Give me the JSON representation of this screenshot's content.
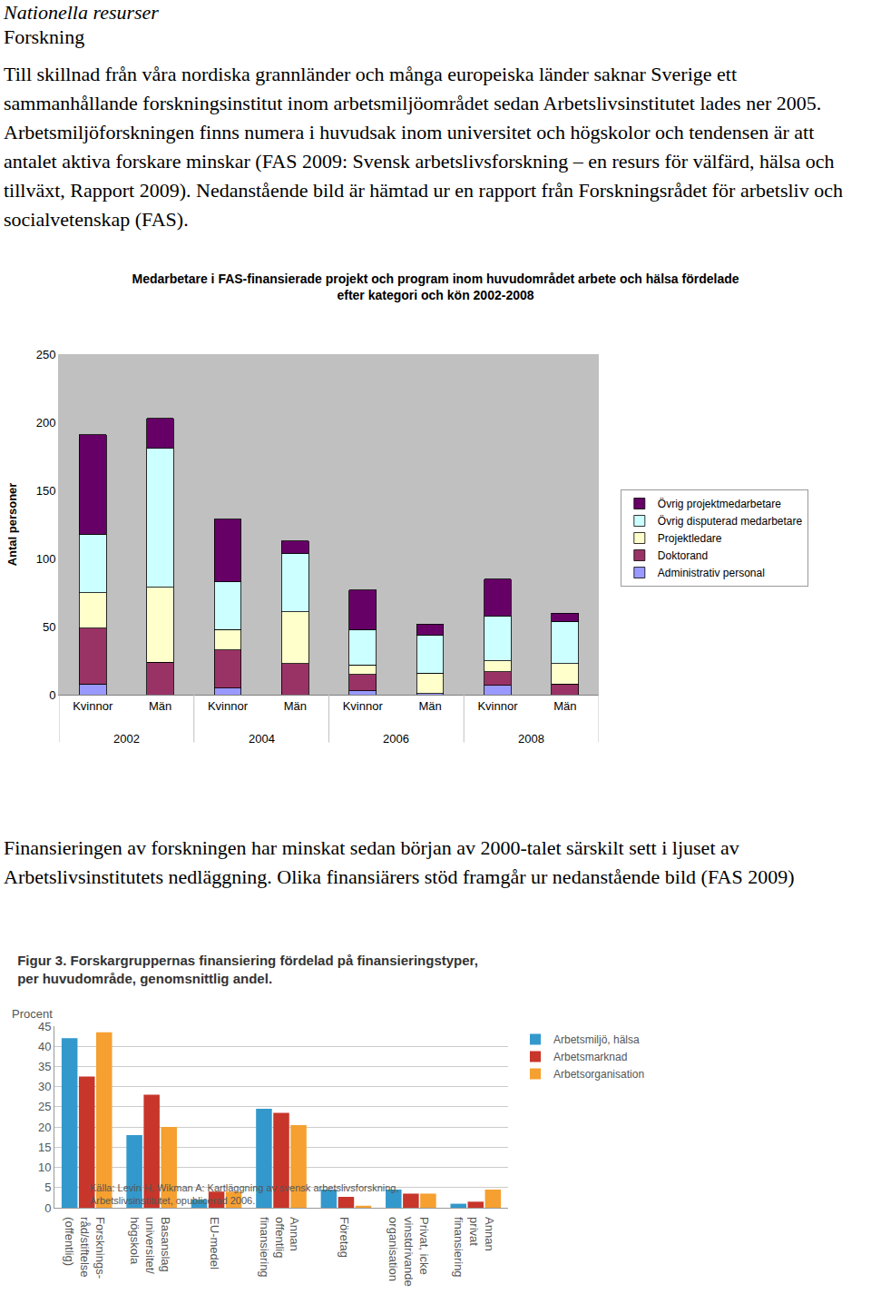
{
  "document": {
    "heading": "Nationella resurser",
    "subheading": "Forskning",
    "paragraphs": [
      "Till skillnad från våra nordiska grannländer och många europeiska länder saknar Sverige ett sammanhållande forskningsinstitut inom arbetsmiljöområdet sedan Arbetslivsinstitutet lades ner 2005. Arbetsmiljöforskningen finns numera i huvudsak inom universitet och högskolor och tendensen är att antalet aktiva forskare minskar (FAS 2009: Svensk arbetslivsforskning – en resurs för välfärd, hälsa och tillväxt, Rapport 2009). Nedanstående bild är hämtad ur en rapport från Forskningsrådet för arbetsliv och socialvetenskap (FAS).",
      "Finansieringen av forskningen har minskat sedan början av 2000-talet särskilt sett i ljuset av Arbetslivsinstitutets nedläggning. Olika finansiärers stöd framgår ur nedanstående bild (FAS 2009)"
    ]
  },
  "chart_data": [
    {
      "type": "bar",
      "stacked": true,
      "title": "Medarbetare i FAS-finansierade projekt och program inom huvudområdet arbete och hälsa fördelade\nefter kategori och kön 2002-2008",
      "y_label": "Antal personer",
      "categories": [
        "Kvinnor",
        "Män",
        "Kvinnor",
        "Män",
        "Kvinnor",
        "Män",
        "Kvinnor",
        "Män"
      ],
      "category_groups": [
        "2002",
        "2002",
        "2004",
        "2004",
        "2006",
        "2006",
        "2008",
        "2008"
      ],
      "series": [
        {
          "name": "Administrativ personal",
          "color": "#9999ff",
          "values": [
            8,
            0,
            5,
            0,
            3,
            1,
            7,
            0
          ]
        },
        {
          "name": "Doktorand",
          "color": "#993366",
          "values": [
            41,
            24,
            28,
            23,
            12,
            0,
            10,
            8
          ]
        },
        {
          "name": "Projektledare",
          "color": "#ffffcc",
          "values": [
            26,
            55,
            15,
            38,
            7,
            15,
            8,
            15
          ]
        },
        {
          "name": "Övrig disputerad medarbetare",
          "color": "#ccffff",
          "values": [
            43,
            102,
            35,
            43,
            26,
            28,
            33,
            31
          ]
        },
        {
          "name": "Övrig projektmedarbetare",
          "color": "#660066",
          "values": [
            73,
            22,
            46,
            9,
            29,
            8,
            27,
            6
          ]
        }
      ],
      "ylim": [
        0,
        250
      ],
      "yticks": [
        0,
        50,
        100,
        150,
        200,
        250
      ],
      "grid": false,
      "legend": "right"
    },
    {
      "type": "bar",
      "stacked": false,
      "title": "Figur 3. Forskargruppernas finansiering fördelad på finansieringstyper,\nper huvudområde, genomsnittlig andel.",
      "y_label": "Procent",
      "source": "Källa: Levin H, Wikman A: Kartläggning av svensk arbetslivsforskning,\nArbetslivsinstitutet, opublicerad 2006.",
      "categories": [
        "Forsknings-\nråd/stiftelse\n(offentlig)",
        "Basanslag\nuniversitet/\nhögskola",
        "EU-medel",
        "Annan\noffentlig\nfinansiering",
        "Företag",
        "Privat, icke\nvinstdrivande\norganisation",
        "Annan\nprivat\nfinansiering"
      ],
      "series": [
        {
          "name": "Arbetsmiljö, hälsa",
          "color": "#3399cc",
          "values": [
            42,
            18,
            2,
            24.5,
            4.5,
            4.5,
            1
          ]
        },
        {
          "name": "Arbetsmarknad",
          "color": "#c8352a",
          "values": [
            32.5,
            28,
            4,
            23.5,
            2.7,
            3.5,
            1.5
          ]
        },
        {
          "name": "Arbetsorganisation",
          "color": "#f5a030",
          "values": [
            43.5,
            20,
            4,
            20.5,
            0.5,
            3.5,
            4.5
          ]
        }
      ],
      "ylim": [
        0,
        45
      ],
      "yticks": [
        0,
        5,
        10,
        15,
        20,
        25,
        30,
        35,
        40,
        45
      ],
      "grid": true,
      "legend": "top right"
    }
  ]
}
